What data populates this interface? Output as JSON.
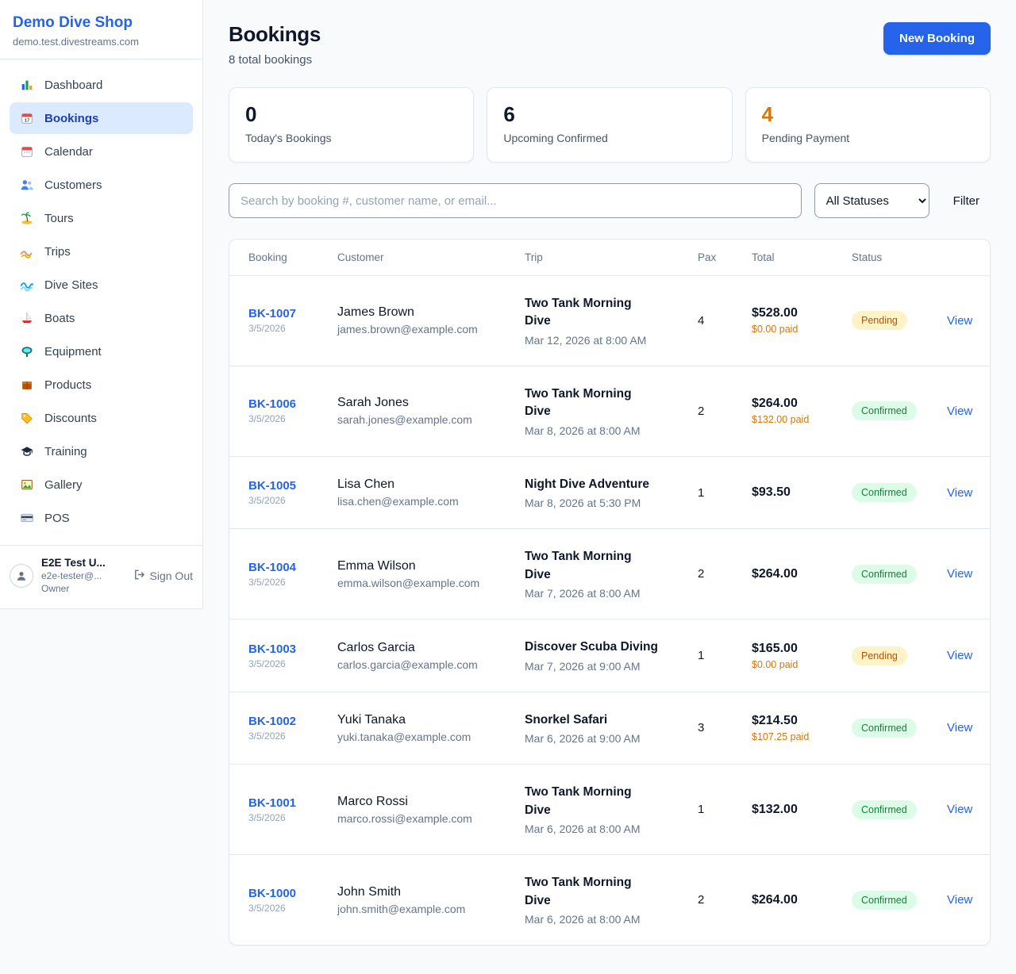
{
  "colors": {
    "accent": "#2563eb",
    "pending_badge_bg": "#fef3c7",
    "pending_badge_text": "#b45309",
    "confirmed_badge_bg": "#dcfce7",
    "confirmed_badge_text": "#15803d",
    "warning_orange": "#d97706"
  },
  "sidebar": {
    "brand": {
      "name": "Demo Dive Shop",
      "domain": "demo.test.divestreams.com"
    },
    "items": [
      {
        "label": "Dashboard",
        "icon": "bar-chart-icon",
        "active": false
      },
      {
        "label": "Bookings",
        "icon": "calendar-date-icon",
        "active": true
      },
      {
        "label": "Calendar",
        "icon": "calendar-icon",
        "active": false
      },
      {
        "label": "Customers",
        "icon": "users-icon",
        "active": false
      },
      {
        "label": "Tours",
        "icon": "palm-island-icon",
        "active": false
      },
      {
        "label": "Trips",
        "icon": "beach-icon",
        "active": false
      },
      {
        "label": "Dive Sites",
        "icon": "wave-icon",
        "active": false
      },
      {
        "label": "Boats",
        "icon": "sailboat-icon",
        "active": false
      },
      {
        "label": "Equipment",
        "icon": "dive-mask-icon",
        "active": false
      },
      {
        "label": "Products",
        "icon": "box-icon",
        "active": false
      },
      {
        "label": "Discounts",
        "icon": "tag-icon",
        "active": false
      },
      {
        "label": "Training",
        "icon": "grad-cap-icon",
        "active": false
      },
      {
        "label": "Gallery",
        "icon": "picture-icon",
        "active": false
      },
      {
        "label": "POS",
        "icon": "credit-card-icon",
        "active": false
      }
    ],
    "user": {
      "name": "E2E Test U...",
      "email": "e2e-tester@...",
      "role": "Owner",
      "sign_out_label": "Sign Out"
    }
  },
  "header": {
    "title": "Bookings",
    "subtitle": "8 total bookings",
    "new_booking_label": "New Booking"
  },
  "stats": [
    {
      "value": "0",
      "label": "Today's Bookings",
      "color": "#0f172a"
    },
    {
      "value": "6",
      "label": "Upcoming Confirmed",
      "color": "#0f172a"
    },
    {
      "value": "4",
      "label": "Pending Payment",
      "color": "#d97706"
    }
  ],
  "filters": {
    "search_placeholder": "Search by booking #, customer name, or email...",
    "status_selected": "All Statuses",
    "filter_label": "Filter"
  },
  "table": {
    "headers": [
      "Booking",
      "Customer",
      "Trip",
      "Pax",
      "Total",
      "Status"
    ],
    "view_label": "View",
    "rows": [
      {
        "id": "BK-1007",
        "date": "3/5/2026",
        "customer": "James Brown",
        "email": "james.brown@example.com",
        "trip": "Two Tank Morning Dive",
        "trip_time": "Mar 12, 2026 at 8:00 AM",
        "pax": "4",
        "total": "$528.00",
        "paid": "$0.00 paid",
        "status": "Pending"
      },
      {
        "id": "BK-1006",
        "date": "3/5/2026",
        "customer": "Sarah Jones",
        "email": "sarah.jones@example.com",
        "trip": "Two Tank Morning Dive",
        "trip_time": "Mar 8, 2026 at 8:00 AM",
        "pax": "2",
        "total": "$264.00",
        "paid": "$132.00 paid",
        "status": "Confirmed"
      },
      {
        "id": "BK-1005",
        "date": "3/5/2026",
        "customer": "Lisa Chen",
        "email": "lisa.chen@example.com",
        "trip": "Night Dive Adventure",
        "trip_time": "Mar 8, 2026 at 5:30 PM",
        "pax": "1",
        "total": "$93.50",
        "paid": "",
        "status": "Confirmed"
      },
      {
        "id": "BK-1004",
        "date": "3/5/2026",
        "customer": "Emma Wilson",
        "email": "emma.wilson@example.com",
        "trip": "Two Tank Morning Dive",
        "trip_time": "Mar 7, 2026 at 8:00 AM",
        "pax": "2",
        "total": "$264.00",
        "paid": "",
        "status": "Confirmed"
      },
      {
        "id": "BK-1003",
        "date": "3/5/2026",
        "customer": "Carlos Garcia",
        "email": "carlos.garcia@example.com",
        "trip": "Discover Scuba Diving",
        "trip_time": "Mar 7, 2026 at 9:00 AM",
        "pax": "1",
        "total": "$165.00",
        "paid": "$0.00 paid",
        "status": "Pending"
      },
      {
        "id": "BK-1002",
        "date": "3/5/2026",
        "customer": "Yuki Tanaka",
        "email": "yuki.tanaka@example.com",
        "trip": "Snorkel Safari",
        "trip_time": "Mar 6, 2026 at 9:00 AM",
        "pax": "3",
        "total": "$214.50",
        "paid": "$107.25 paid",
        "status": "Confirmed"
      },
      {
        "id": "BK-1001",
        "date": "3/5/2026",
        "customer": "Marco Rossi",
        "email": "marco.rossi@example.com",
        "trip": "Two Tank Morning Dive",
        "trip_time": "Mar 6, 2026 at 8:00 AM",
        "pax": "1",
        "total": "$132.00",
        "paid": "",
        "status": "Confirmed"
      },
      {
        "id": "BK-1000",
        "date": "3/5/2026",
        "customer": "John Smith",
        "email": "john.smith@example.com",
        "trip": "Two Tank Morning Dive",
        "trip_time": "Mar 6, 2026 at 8:00 AM",
        "pax": "2",
        "total": "$264.00",
        "paid": "",
        "status": "Confirmed"
      }
    ]
  }
}
